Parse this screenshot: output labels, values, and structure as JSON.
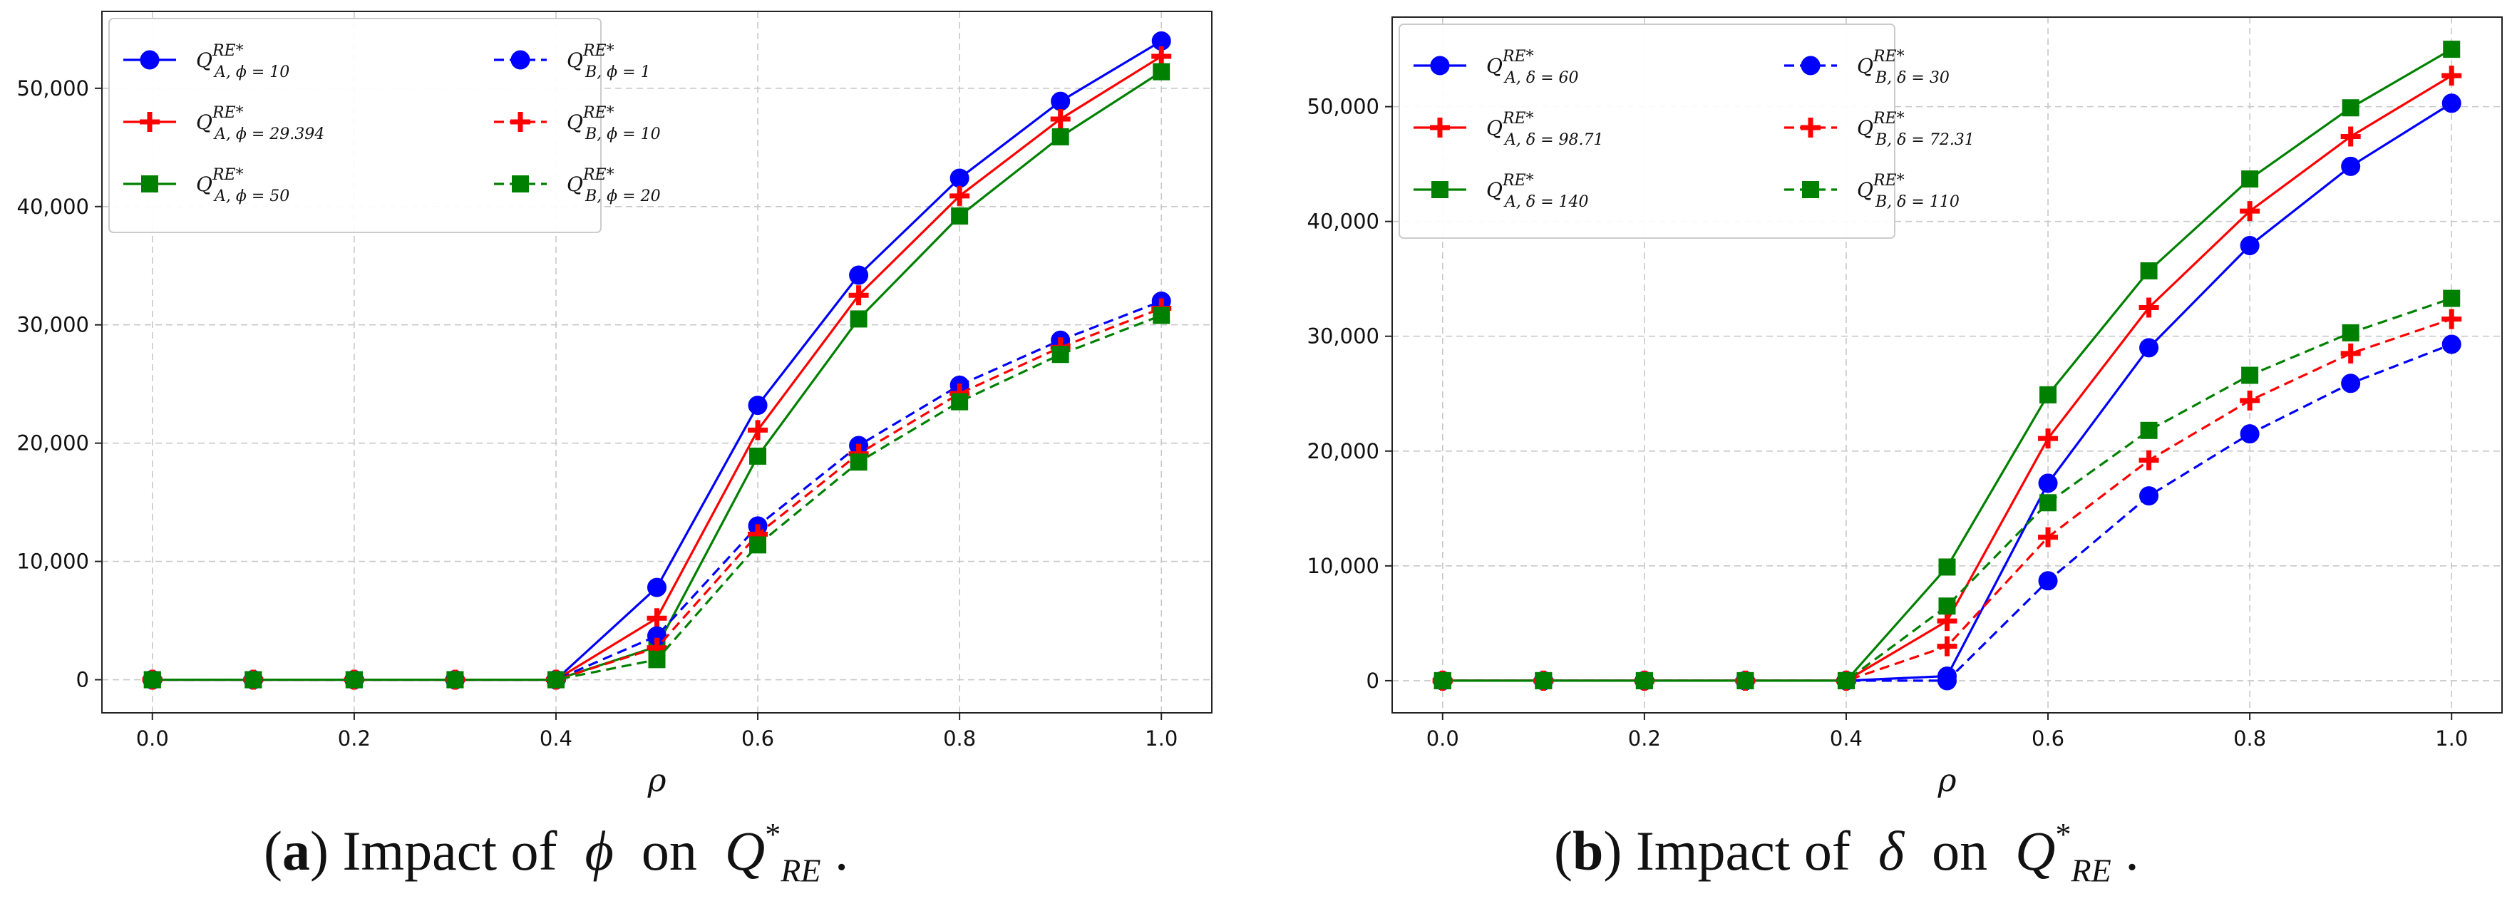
{
  "chart_data": [
    {
      "type": "line",
      "panel": "a",
      "caption": {
        "label": "a",
        "text": "Impact of",
        "param": "ϕ",
        "on": "on",
        "Q": "Q",
        "sup": "*",
        "sub": "RE",
        "end": "."
      },
      "xlabel": "ρ",
      "ylabel": "",
      "x": [
        0.0,
        0.1,
        0.2,
        0.3,
        0.4,
        0.5,
        0.6,
        0.7,
        0.8,
        0.9,
        1.0
      ],
      "xticks": [
        0.0,
        0.2,
        0.4,
        0.6,
        0.8,
        1.0
      ],
      "xtick_labels": [
        "0.0",
        "0.2",
        "0.4",
        "0.6",
        "0.8",
        "1.0"
      ],
      "yticks": [
        0,
        10000,
        20000,
        30000,
        40000,
        50000
      ],
      "ytick_labels": [
        "0",
        "10,000",
        "20,000",
        "30,000",
        "40,000",
        "50,000"
      ],
      "xlim": [
        -0.05,
        1.05
      ],
      "ylim": [
        -2800,
        56500
      ],
      "grid": true,
      "legend_position": "top-left",
      "series": [
        {
          "name": "Q^{RE*}_{A, ϕ = 10}",
          "base": "Q",
          "sup": "RE*",
          "sub": "A, ϕ = 10",
          "color": "#0000ff",
          "marker": "circle",
          "dash": "solid",
          "values": [
            0,
            0,
            0,
            0,
            0,
            7800,
            23200,
            34200,
            42400,
            48900,
            54000
          ]
        },
        {
          "name": "Q^{RE*}_{A, ϕ = 29.394}",
          "base": "Q",
          "sup": "RE*",
          "sub": "A, ϕ = 29.394",
          "color": "#ff0000",
          "marker": "plus",
          "dash": "solid",
          "values": [
            0,
            0,
            0,
            0,
            0,
            5200,
            21100,
            32500,
            40900,
            47400,
            52700
          ]
        },
        {
          "name": "Q^{RE*}_{A, ϕ = 50}",
          "base": "Q",
          "sup": "RE*",
          "sub": "A, ϕ = 50",
          "color": "#008000",
          "marker": "square",
          "dash": "solid",
          "values": [
            0,
            0,
            0,
            0,
            0,
            2800,
            18900,
            30500,
            39200,
            45900,
            51400
          ]
        },
        {
          "name": "Q^{RE*}_{B, ϕ = 1}",
          "base": "Q",
          "sup": "RE*",
          "sub": "B, ϕ = 1",
          "color": "#0000ff",
          "marker": "circle",
          "dash": "dashed",
          "values": [
            0,
            0,
            0,
            0,
            0,
            3700,
            13000,
            19800,
            24900,
            28700,
            32000
          ]
        },
        {
          "name": "Q^{RE*}_{B, ϕ = 10}",
          "base": "Q",
          "sup": "RE*",
          "sub": "B, ϕ = 10",
          "color": "#ff0000",
          "marker": "plus",
          "dash": "dashed",
          "values": [
            0,
            0,
            0,
            0,
            0,
            2700,
            12300,
            19100,
            24200,
            28100,
            31400
          ]
        },
        {
          "name": "Q^{RE*}_{B, ϕ = 20}",
          "base": "Q",
          "sup": "RE*",
          "sub": "B, ϕ = 20",
          "color": "#008000",
          "marker": "square",
          "dash": "dashed",
          "values": [
            0,
            0,
            0,
            0,
            0,
            1700,
            11400,
            18400,
            23500,
            27500,
            30800
          ]
        }
      ]
    },
    {
      "type": "line",
      "panel": "b",
      "caption": {
        "label": "b",
        "text": "Impact of",
        "param": "δ",
        "on": "on",
        "Q": "Q",
        "sup": "*",
        "sub": "RE",
        "end": "."
      },
      "xlabel": "ρ",
      "ylabel": "",
      "x": [
        0.0,
        0.1,
        0.2,
        0.3,
        0.4,
        0.5,
        0.6,
        0.7,
        0.8,
        0.9,
        1.0
      ],
      "xticks": [
        0.0,
        0.2,
        0.4,
        0.6,
        0.8,
        1.0
      ],
      "xtick_labels": [
        "0.0",
        "0.2",
        "0.4",
        "0.6",
        "0.8",
        "1.0"
      ],
      "yticks": [
        0,
        10000,
        20000,
        30000,
        40000,
        50000
      ],
      "ytick_labels": [
        "0",
        "10,000",
        "20,000",
        "30,000",
        "40,000",
        "50,000"
      ],
      "xlim": [
        -0.05,
        1.05
      ],
      "ylim": [
        -2800,
        57800
      ],
      "grid": true,
      "legend_position": "top-left",
      "series": [
        {
          "name": "Q^{RE*}_{A, δ = 60}",
          "base": "Q",
          "sup": "RE*",
          "sub": "A, δ = 60",
          "color": "#0000ff",
          "marker": "circle",
          "dash": "solid",
          "values": [
            0,
            0,
            0,
            0,
            0,
            400,
            17200,
            29000,
            37900,
            44800,
            50300
          ]
        },
        {
          "name": "Q^{RE*}_{A, δ = 98.71}",
          "base": "Q",
          "sup": "RE*",
          "sub": "A, δ = 98.71",
          "color": "#ff0000",
          "marker": "plus",
          "dash": "solid",
          "values": [
            0,
            0,
            0,
            0,
            0,
            5200,
            21100,
            32500,
            40900,
            47400,
            52700
          ]
        },
        {
          "name": "Q^{RE*}_{A, δ = 140}",
          "base": "Q",
          "sup": "RE*",
          "sub": "A, δ = 140",
          "color": "#008000",
          "marker": "square",
          "dash": "solid",
          "values": [
            0,
            0,
            0,
            0,
            0,
            9900,
            24900,
            35700,
            43700,
            49900,
            55000
          ]
        },
        {
          "name": "Q^{RE*}_{B, δ = 30}",
          "base": "Q",
          "sup": "RE*",
          "sub": "B, δ = 30",
          "color": "#0000ff",
          "marker": "circle",
          "dash": "dashed",
          "values": [
            0,
            0,
            0,
            0,
            0,
            0,
            8700,
            16100,
            21500,
            25900,
            29300
          ]
        },
        {
          "name": "Q^{RE*}_{B, δ = 72.31}",
          "base": "Q",
          "sup": "RE*",
          "sub": "B, δ = 72.31",
          "color": "#ff0000",
          "marker": "plus",
          "dash": "dashed",
          "values": [
            0,
            0,
            0,
            0,
            0,
            3000,
            12500,
            19200,
            24400,
            28500,
            31500
          ]
        },
        {
          "name": "Q^{RE*}_{B, δ = 110}",
          "base": "Q",
          "sup": "RE*",
          "sub": "B, δ = 110",
          "color": "#008000",
          "marker": "square",
          "dash": "dashed",
          "values": [
            0,
            0,
            0,
            0,
            0,
            6500,
            15500,
            21800,
            26600,
            30300,
            33300
          ]
        }
      ]
    }
  ]
}
